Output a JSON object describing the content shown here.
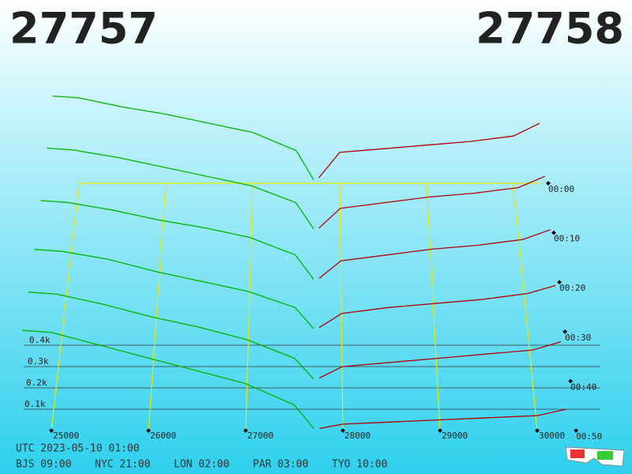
{
  "chart_data": {
    "type": "depth-waterfall",
    "best_bid": 27757,
    "best_ask": 27758,
    "bid_color": "#00b400",
    "ask_color": "#b00000",
    "grid_color": "#e8e800",
    "xticks": [
      25000,
      26000,
      27000,
      28000,
      29000,
      30000
    ],
    "depth_ticks": [
      {
        "value": 100,
        "label": "0.1k"
      },
      {
        "value": 200,
        "label": "0.2k"
      },
      {
        "value": 300,
        "label": "0.3k"
      },
      {
        "value": 400,
        "label": "0.4k"
      }
    ],
    "time_ticks": [
      "00:00",
      "00:10",
      "00:20",
      "00:30",
      "00:40",
      "00:50"
    ],
    "bid_prices": [
      24700,
      25000,
      25500,
      26000,
      26500,
      27000,
      27500,
      27700
    ],
    "ask_prices": [
      27760,
      28000,
      28500,
      29000,
      29500,
      30000,
      30300
    ],
    "bid_depth": [
      [
        480,
        470,
        420,
        380,
        330,
        280,
        180,
        20
      ],
      [
        450,
        440,
        400,
        350,
        300,
        250,
        160,
        20
      ],
      [
        420,
        410,
        370,
        320,
        280,
        230,
        140,
        15
      ],
      [
        410,
        400,
        360,
        300,
        250,
        200,
        120,
        15
      ],
      [
        430,
        420,
        370,
        310,
        260,
        200,
        110,
        10
      ],
      [
        470,
        460,
        400,
        340,
        280,
        220,
        120,
        10
      ]
    ],
    "ask_depth": [
      [
        30,
        170,
        190,
        210,
        230,
        260,
        330
      ],
      [
        25,
        130,
        160,
        190,
        210,
        240,
        300
      ],
      [
        20,
        110,
        140,
        170,
        190,
        220,
        270
      ],
      [
        20,
        90,
        120,
        140,
        160,
        190,
        230
      ],
      [
        15,
        70,
        90,
        110,
        130,
        150,
        190
      ],
      [
        10,
        30,
        40,
        50,
        60,
        70,
        100
      ]
    ],
    "utc": "UTC 2023-05-10 01:00",
    "clocks": [
      "BJS 09:00",
      "NYC 21:00",
      "LON 02:00",
      "PAR 03:00",
      "TYO 10:00"
    ]
  }
}
